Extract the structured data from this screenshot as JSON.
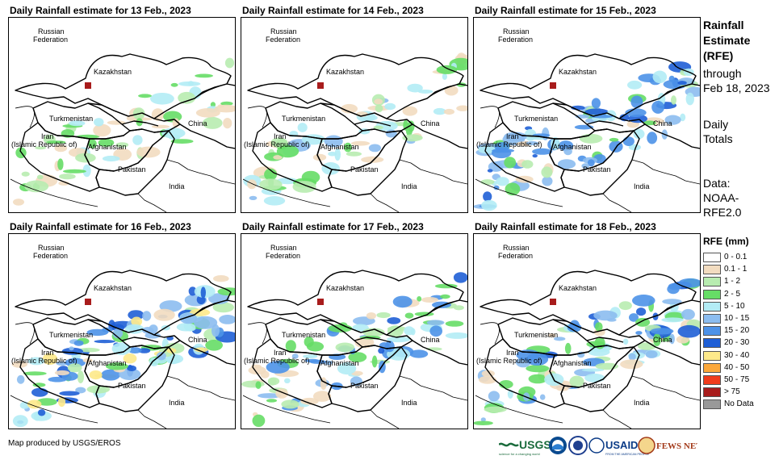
{
  "panels": [
    {
      "title": "Daily Rainfall estimate for 13 Feb., 2023",
      "intensity": 0.35,
      "seed": 13
    },
    {
      "title": "Daily Rainfall estimate for 14 Feb., 2023",
      "intensity": 0.45,
      "seed": 14
    },
    {
      "title": "Daily Rainfall estimate for 15 Feb., 2023",
      "intensity": 0.8,
      "seed": 15
    },
    {
      "title": "Daily Rainfall estimate for 16 Feb., 2023",
      "intensity": 0.95,
      "seed": 16
    },
    {
      "title": "Daily Rainfall estimate for 17 Feb., 2023",
      "intensity": 0.7,
      "seed": 17
    },
    {
      "title": "Daily Rainfall estimate for 18 Feb., 2023",
      "intensity": 0.75,
      "seed": 18
    }
  ],
  "map_labels": {
    "russia_1": "Russian",
    "russia_2": "Federation",
    "kazakhstan": "Kazakhstan",
    "turkmenistan": "Turkmenistan",
    "iran_1": "Iran",
    "iran_2": "(Islamic Republic of)",
    "afghanistan": "Afghanistan",
    "pakistan": "Pakistan",
    "china": "China",
    "india": "India"
  },
  "side": {
    "title_1": "Rainfall",
    "title_2": "Estimate",
    "title_3": "(RFE)",
    "through": "through",
    "date": "Feb 18, 2023",
    "daily": "Daily",
    "totals": "Totals",
    "data_1": "Data:",
    "data_2": "NOAA-",
    "data_3": "RFE2.0"
  },
  "legend": {
    "title": "RFE (mm)",
    "items": [
      {
        "label": "0 - 0.1",
        "color": "#ffffff"
      },
      {
        "label": "0.1 - 1",
        "color": "#f2dcc0"
      },
      {
        "label": "1 - 2",
        "color": "#b8ecb0"
      },
      {
        "label": "2 - 5",
        "color": "#66dd66"
      },
      {
        "label": "5 - 10",
        "color": "#b3ecf5"
      },
      {
        "label": "10 - 15",
        "color": "#8cbdf0"
      },
      {
        "label": "15 - 20",
        "color": "#4d92e8"
      },
      {
        "label": "20 - 30",
        "color": "#1f5fd6"
      },
      {
        "label": "30 - 40",
        "color": "#fde98a"
      },
      {
        "label": "40 - 50",
        "color": "#fca83b"
      },
      {
        "label": "50 - 75",
        "color": "#f03c1c"
      },
      {
        "label": "> 75",
        "color": "#a81c1c"
      },
      {
        "label": "No Data",
        "color": "#999999"
      }
    ]
  },
  "credit": "Map produced by USGS/EROS",
  "logos": {
    "usgs": "USGS",
    "usgs_tag": "science for a changing world",
    "usaid": "USAID",
    "usaid_tag": "FROM THE AMERICAN PEOPLE",
    "fews": "FEWS NET"
  }
}
